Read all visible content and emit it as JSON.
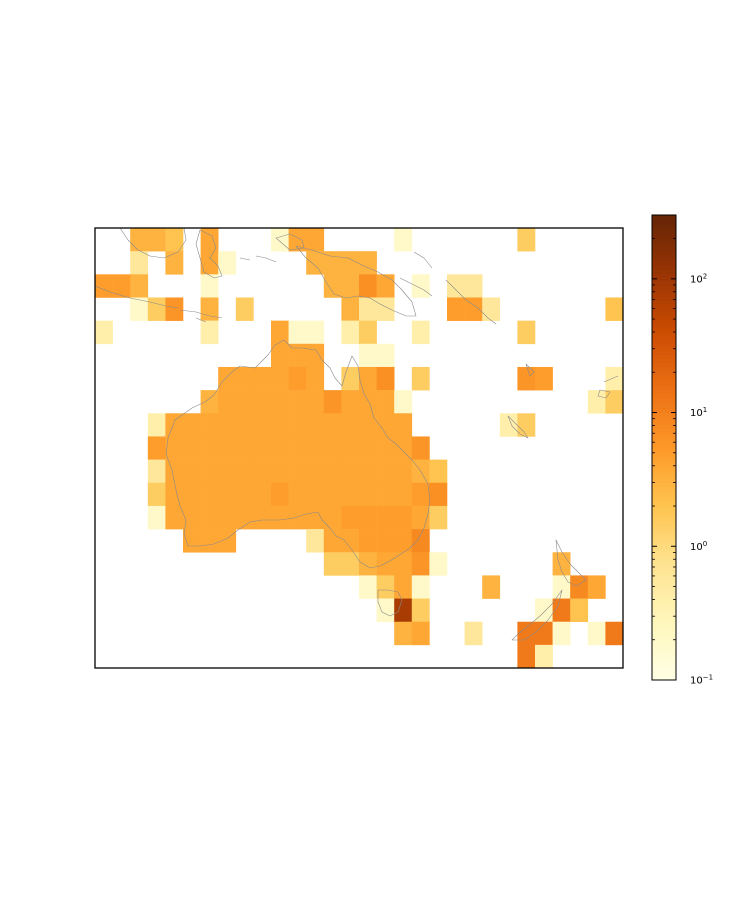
{
  "figure": {
    "background": "#ffffff",
    "frame_color": "#000000",
    "coastline_color": "#8a8a8a"
  },
  "colorbar": {
    "scale": "log",
    "range": [
      0.1,
      300
    ],
    "ticks": [
      {
        "value": 0.1,
        "base": "10",
        "exp": "−1"
      },
      {
        "value": 1,
        "base": "10",
        "exp": "0"
      },
      {
        "value": 10,
        "base": "10",
        "exp": "1"
      },
      {
        "value": 100,
        "base": "10",
        "exp": "2"
      }
    ],
    "colormap": [
      "#ffffe5",
      "#fff7bc",
      "#fee391",
      "#fec44f",
      "#fe9929",
      "#ec7014",
      "#cc4c02",
      "#993404",
      "#662506"
    ]
  },
  "chart_data": {
    "type": "heatmap",
    "title": "",
    "xlabel": "",
    "ylabel": "",
    "region": "Australia and surrounding region",
    "grid_rows": 19,
    "grid_cols": 30,
    "scale": "log",
    "vmin": 0.1,
    "vmax": 300,
    "cells": [
      {
        "r": 0,
        "c": 2,
        "v": 3
      },
      {
        "r": 0,
        "c": 3,
        "v": 3
      },
      {
        "r": 0,
        "c": 4,
        "v": 2
      },
      {
        "r": 0,
        "c": 6,
        "v": 4
      },
      {
        "r": 0,
        "c": 10,
        "v": 0.2
      },
      {
        "r": 0,
        "c": 11,
        "v": 4
      },
      {
        "r": 0,
        "c": 12,
        "v": 4
      },
      {
        "r": 0,
        "c": 17,
        "v": 0.2
      },
      {
        "r": 0,
        "c": 24,
        "v": 1.5
      },
      {
        "r": 1,
        "c": 2,
        "v": 0.6
      },
      {
        "r": 1,
        "c": 4,
        "v": 3
      },
      {
        "r": 1,
        "c": 6,
        "v": 4
      },
      {
        "r": 1,
        "c": 7,
        "v": 0.2
      },
      {
        "r": 1,
        "c": 12,
        "v": 3
      },
      {
        "r": 1,
        "c": 13,
        "v": 3
      },
      {
        "r": 1,
        "c": 14,
        "v": 3
      },
      {
        "r": 1,
        "c": 15,
        "v": 3
      },
      {
        "r": 2,
        "c": 0,
        "v": 5
      },
      {
        "r": 2,
        "c": 1,
        "v": 5
      },
      {
        "r": 2,
        "c": 2,
        "v": 3
      },
      {
        "r": 2,
        "c": 6,
        "v": 0.2
      },
      {
        "r": 2,
        "c": 13,
        "v": 3
      },
      {
        "r": 2,
        "c": 14,
        "v": 3
      },
      {
        "r": 2,
        "c": 15,
        "v": 7
      },
      {
        "r": 2,
        "c": 16,
        "v": 4
      },
      {
        "r": 2,
        "c": 18,
        "v": 0.2
      },
      {
        "r": 2,
        "c": 20,
        "v": 0.6
      },
      {
        "r": 2,
        "c": 21,
        "v": 0.6
      },
      {
        "r": 3,
        "c": 2,
        "v": 0.2
      },
      {
        "r": 3,
        "c": 3,
        "v": 1.5
      },
      {
        "r": 3,
        "c": 4,
        "v": 6
      },
      {
        "r": 3,
        "c": 6,
        "v": 3
      },
      {
        "r": 3,
        "c": 8,
        "v": 1.5
      },
      {
        "r": 3,
        "c": 14,
        "v": 3
      },
      {
        "r": 3,
        "c": 15,
        "v": 0.6
      },
      {
        "r": 3,
        "c": 16,
        "v": 0.6
      },
      {
        "r": 3,
        "c": 20,
        "v": 5
      },
      {
        "r": 3,
        "c": 21,
        "v": 5
      },
      {
        "r": 3,
        "c": 22,
        "v": 0.6
      },
      {
        "r": 3,
        "c": 29,
        "v": 2
      },
      {
        "r": 4,
        "c": 0,
        "v": 0.4
      },
      {
        "r": 4,
        "c": 6,
        "v": 0.4
      },
      {
        "r": 4,
        "c": 10,
        "v": 4
      },
      {
        "r": 4,
        "c": 11,
        "v": 0.2
      },
      {
        "r": 4,
        "c": 12,
        "v": 0.2
      },
      {
        "r": 4,
        "c": 14,
        "v": 0.4
      },
      {
        "r": 4,
        "c": 15,
        "v": 1.5
      },
      {
        "r": 4,
        "c": 18,
        "v": 0.4
      },
      {
        "r": 4,
        "c": 24,
        "v": 1.5
      },
      {
        "r": 5,
        "c": 10,
        "v": 4
      },
      {
        "r": 5,
        "c": 11,
        "v": 4
      },
      {
        "r": 5,
        "c": 12,
        "v": 4
      },
      {
        "r": 5,
        "c": 15,
        "v": 0.2
      },
      {
        "r": 5,
        "c": 16,
        "v": 0.2
      },
      {
        "r": 6,
        "c": 7,
        "v": 4
      },
      {
        "r": 6,
        "c": 8,
        "v": 4
      },
      {
        "r": 6,
        "c": 9,
        "v": 4
      },
      {
        "r": 6,
        "c": 10,
        "v": 4
      },
      {
        "r": 6,
        "c": 11,
        "v": 5
      },
      {
        "r": 6,
        "c": 12,
        "v": 4
      },
      {
        "r": 6,
        "c": 14,
        "v": 1.5
      },
      {
        "r": 6,
        "c": 15,
        "v": 4
      },
      {
        "r": 6,
        "c": 16,
        "v": 7
      },
      {
        "r": 6,
        "c": 18,
        "v": 1.5
      },
      {
        "r": 6,
        "c": 24,
        "v": 6
      },
      {
        "r": 6,
        "c": 25,
        "v": 5
      },
      {
        "r": 6,
        "c": 29,
        "v": 0.4
      },
      {
        "r": 7,
        "c": 6,
        "v": 3
      },
      {
        "r": 7,
        "c": 7,
        "v": 4
      },
      {
        "r": 7,
        "c": 8,
        "v": 4
      },
      {
        "r": 7,
        "c": 9,
        "v": 4
      },
      {
        "r": 7,
        "c": 10,
        "v": 4
      },
      {
        "r": 7,
        "c": 11,
        "v": 4
      },
      {
        "r": 7,
        "c": 12,
        "v": 4
      },
      {
        "r": 7,
        "c": 13,
        "v": 6
      },
      {
        "r": 7,
        "c": 14,
        "v": 4
      },
      {
        "r": 7,
        "c": 15,
        "v": 4
      },
      {
        "r": 7,
        "c": 16,
        "v": 4
      },
      {
        "r": 7,
        "c": 17,
        "v": 0.2
      },
      {
        "r": 7,
        "c": 28,
        "v": 0.4
      },
      {
        "r": 7,
        "c": 29,
        "v": 1.5
      },
      {
        "r": 8,
        "c": 3,
        "v": 0.4
      },
      {
        "r": 8,
        "c": 4,
        "v": 4
      },
      {
        "r": 8,
        "c": 5,
        "v": 4
      },
      {
        "r": 8,
        "c": 6,
        "v": 4
      },
      {
        "r": 8,
        "c": 7,
        "v": 4
      },
      {
        "r": 8,
        "c": 8,
        "v": 4
      },
      {
        "r": 8,
        "c": 9,
        "v": 4
      },
      {
        "r": 8,
        "c": 10,
        "v": 4
      },
      {
        "r": 8,
        "c": 11,
        "v": 4
      },
      {
        "r": 8,
        "c": 12,
        "v": 4
      },
      {
        "r": 8,
        "c": 13,
        "v": 4
      },
      {
        "r": 8,
        "c": 14,
        "v": 4
      },
      {
        "r": 8,
        "c": 15,
        "v": 4
      },
      {
        "r": 8,
        "c": 16,
        "v": 4
      },
      {
        "r": 8,
        "c": 17,
        "v": 4
      },
      {
        "r": 8,
        "c": 23,
        "v": 0.4
      },
      {
        "r": 8,
        "c": 24,
        "v": 1.5
      },
      {
        "r": 9,
        "c": 3,
        "v": 5
      },
      {
        "r": 9,
        "c": 4,
        "v": 4
      },
      {
        "r": 9,
        "c": 5,
        "v": 4
      },
      {
        "r": 9,
        "c": 6,
        "v": 4
      },
      {
        "r": 9,
        "c": 7,
        "v": 4
      },
      {
        "r": 9,
        "c": 8,
        "v": 4
      },
      {
        "r": 9,
        "c": 9,
        "v": 4
      },
      {
        "r": 9,
        "c": 10,
        "v": 4
      },
      {
        "r": 9,
        "c": 11,
        "v": 4
      },
      {
        "r": 9,
        "c": 12,
        "v": 4
      },
      {
        "r": 9,
        "c": 13,
        "v": 4
      },
      {
        "r": 9,
        "c": 14,
        "v": 4
      },
      {
        "r": 9,
        "c": 15,
        "v": 4
      },
      {
        "r": 9,
        "c": 16,
        "v": 4
      },
      {
        "r": 9,
        "c": 17,
        "v": 4
      },
      {
        "r": 9,
        "c": 18,
        "v": 6
      },
      {
        "r": 10,
        "c": 3,
        "v": 0.6
      },
      {
        "r": 10,
        "c": 4,
        "v": 4
      },
      {
        "r": 10,
        "c": 5,
        "v": 4
      },
      {
        "r": 10,
        "c": 6,
        "v": 4
      },
      {
        "r": 10,
        "c": 7,
        "v": 4
      },
      {
        "r": 10,
        "c": 8,
        "v": 4
      },
      {
        "r": 10,
        "c": 9,
        "v": 4
      },
      {
        "r": 10,
        "c": 10,
        "v": 4
      },
      {
        "r": 10,
        "c": 11,
        "v": 4
      },
      {
        "r": 10,
        "c": 12,
        "v": 4
      },
      {
        "r": 10,
        "c": 13,
        "v": 4
      },
      {
        "r": 10,
        "c": 14,
        "v": 4
      },
      {
        "r": 10,
        "c": 15,
        "v": 4
      },
      {
        "r": 10,
        "c": 16,
        "v": 4
      },
      {
        "r": 10,
        "c": 17,
        "v": 4
      },
      {
        "r": 10,
        "c": 18,
        "v": 3
      },
      {
        "r": 10,
        "c": 19,
        "v": 2
      },
      {
        "r": 11,
        "c": 3,
        "v": 1.5
      },
      {
        "r": 11,
        "c": 4,
        "v": 4
      },
      {
        "r": 11,
        "c": 5,
        "v": 4
      },
      {
        "r": 11,
        "c": 6,
        "v": 4
      },
      {
        "r": 11,
        "c": 7,
        "v": 4
      },
      {
        "r": 11,
        "c": 8,
        "v": 4
      },
      {
        "r": 11,
        "c": 9,
        "v": 4
      },
      {
        "r": 11,
        "c": 10,
        "v": 5
      },
      {
        "r": 11,
        "c": 11,
        "v": 4
      },
      {
        "r": 11,
        "c": 12,
        "v": 4
      },
      {
        "r": 11,
        "c": 13,
        "v": 4
      },
      {
        "r": 11,
        "c": 14,
        "v": 4
      },
      {
        "r": 11,
        "c": 15,
        "v": 4
      },
      {
        "r": 11,
        "c": 16,
        "v": 4
      },
      {
        "r": 11,
        "c": 17,
        "v": 4
      },
      {
        "r": 11,
        "c": 18,
        "v": 5
      },
      {
        "r": 11,
        "c": 19,
        "v": 7
      },
      {
        "r": 12,
        "c": 3,
        "v": 0.2
      },
      {
        "r": 12,
        "c": 4,
        "v": 4
      },
      {
        "r": 12,
        "c": 5,
        "v": 4
      },
      {
        "r": 12,
        "c": 6,
        "v": 4
      },
      {
        "r": 12,
        "c": 7,
        "v": 4
      },
      {
        "r": 12,
        "c": 8,
        "v": 4
      },
      {
        "r": 12,
        "c": 9,
        "v": 4
      },
      {
        "r": 12,
        "c": 10,
        "v": 4
      },
      {
        "r": 12,
        "c": 11,
        "v": 4
      },
      {
        "r": 12,
        "c": 12,
        "v": 4
      },
      {
        "r": 12,
        "c": 13,
        "v": 4
      },
      {
        "r": 12,
        "c": 14,
        "v": 5
      },
      {
        "r": 12,
        "c": 15,
        "v": 5
      },
      {
        "r": 12,
        "c": 16,
        "v": 5
      },
      {
        "r": 12,
        "c": 17,
        "v": 5
      },
      {
        "r": 12,
        "c": 18,
        "v": 4
      },
      {
        "r": 12,
        "c": 19,
        "v": 1.5
      },
      {
        "r": 13,
        "c": 5,
        "v": 4
      },
      {
        "r": 13,
        "c": 6,
        "v": 4
      },
      {
        "r": 13,
        "c": 7,
        "v": 4
      },
      {
        "r": 13,
        "c": 12,
        "v": 0.6
      },
      {
        "r": 13,
        "c": 13,
        "v": 4
      },
      {
        "r": 13,
        "c": 14,
        "v": 4
      },
      {
        "r": 13,
        "c": 15,
        "v": 5
      },
      {
        "r": 13,
        "c": 16,
        "v": 5
      },
      {
        "r": 13,
        "c": 17,
        "v": 5
      },
      {
        "r": 13,
        "c": 18,
        "v": 8
      },
      {
        "r": 14,
        "c": 13,
        "v": 1.5
      },
      {
        "r": 14,
        "c": 14,
        "v": 1.5
      },
      {
        "r": 14,
        "c": 15,
        "v": 3
      },
      {
        "r": 14,
        "c": 16,
        "v": 4
      },
      {
        "r": 14,
        "c": 17,
        "v": 4
      },
      {
        "r": 14,
        "c": 18,
        "v": 6
      },
      {
        "r": 14,
        "c": 19,
        "v": 0.2
      },
      {
        "r": 14,
        "c": 26,
        "v": 3
      },
      {
        "r": 15,
        "c": 15,
        "v": 0.2
      },
      {
        "r": 15,
        "c": 16,
        "v": 1.5
      },
      {
        "r": 15,
        "c": 17,
        "v": 4
      },
      {
        "r": 15,
        "c": 18,
        "v": 0.2
      },
      {
        "r": 15,
        "c": 22,
        "v": 3
      },
      {
        "r": 15,
        "c": 26,
        "v": 0.2
      },
      {
        "r": 15,
        "c": 27,
        "v": 8
      },
      {
        "r": 15,
        "c": 28,
        "v": 4
      },
      {
        "r": 16,
        "c": 16,
        "v": 0.2
      },
      {
        "r": 16,
        "c": 17,
        "v": 80
      },
      {
        "r": 16,
        "c": 18,
        "v": 1.5
      },
      {
        "r": 16,
        "c": 25,
        "v": 0.2
      },
      {
        "r": 16,
        "c": 26,
        "v": 12
      },
      {
        "r": 16,
        "c": 27,
        "v": 2
      },
      {
        "r": 17,
        "c": 17,
        "v": 3
      },
      {
        "r": 17,
        "c": 18,
        "v": 4
      },
      {
        "r": 17,
        "c": 21,
        "v": 0.6
      },
      {
        "r": 17,
        "c": 24,
        "v": 12
      },
      {
        "r": 17,
        "c": 25,
        "v": 12
      },
      {
        "r": 17,
        "c": 26,
        "v": 0.2
      },
      {
        "r": 17,
        "c": 28,
        "v": 0.2
      },
      {
        "r": 17,
        "c": 29,
        "v": 12
      },
      {
        "r": 18,
        "c": 24,
        "v": 12
      },
      {
        "r": 18,
        "c": 25,
        "v": 0.4
      }
    ],
    "partial_cells": [
      {
        "r": 19,
        "c": 5,
        "v": 3,
        "note": "cell extends below map frame"
      }
    ]
  }
}
